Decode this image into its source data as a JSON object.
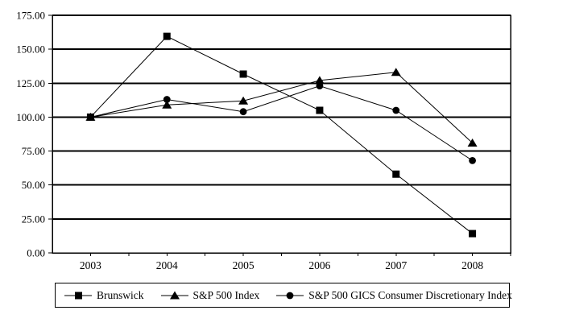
{
  "chart_data": {
    "type": "line",
    "title": "",
    "xlabel": "",
    "ylabel": "",
    "categories": [
      "2003",
      "2004",
      "2005",
      "2006",
      "2007",
      "2008"
    ],
    "series": [
      {
        "name": "Brunswick",
        "marker": "square",
        "color": "#000000",
        "values": [
          100,
          159.5,
          131.7,
          105,
          58,
          14.2
        ]
      },
      {
        "name": "S&P 500 Index",
        "marker": "triangle",
        "color": "#000000",
        "values": [
          100,
          109,
          112,
          127,
          133,
          81
        ]
      },
      {
        "name": "S&P 500 GICS Consumer Discretionary Index",
        "marker": "circle",
        "color": "#000000",
        "values": [
          100,
          113,
          104,
          123,
          105,
          68
        ]
      }
    ],
    "ylim": [
      0,
      175
    ],
    "y_tick_step": 25,
    "y_tick_labels": [
      "0.00",
      "25.00",
      "50.00",
      "75.00",
      "100.00",
      "125.00",
      "150.00",
      "175.00"
    ],
    "grid": "horizontal",
    "legend_position": "bottom-boxed",
    "plot_background": "#ffffff",
    "axis_color": "#000000",
    "gridline_color": "#000000"
  },
  "legend": {
    "items": [
      {
        "label": "Brunswick",
        "marker": "square"
      },
      {
        "label": "S&P 500 Index",
        "marker": "triangle"
      },
      {
        "label": "S&P 500 GICS Consumer Discretionary Index",
        "marker": "circle"
      }
    ]
  }
}
